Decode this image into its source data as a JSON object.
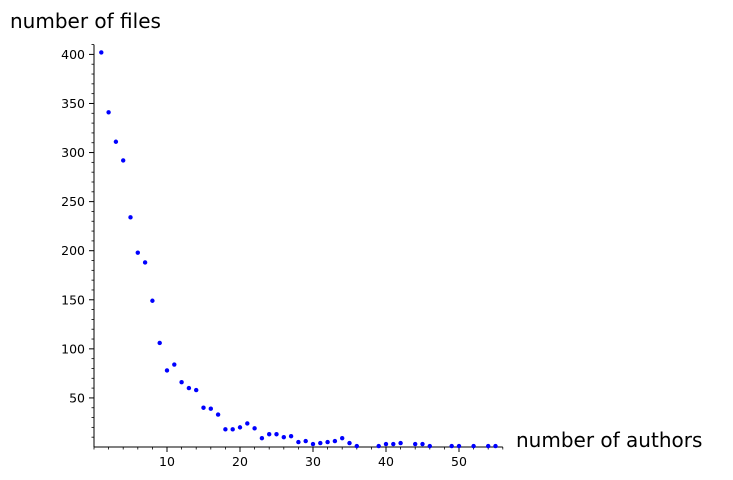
{
  "chart_data": {
    "type": "scatter",
    "title": "",
    "xlabel": "number of authors",
    "ylabel": "number of files",
    "xlim": [
      0,
      56
    ],
    "ylim": [
      0,
      410
    ],
    "grid": false,
    "marker_color": "#0000ff",
    "xticks": [
      10,
      20,
      30,
      40,
      50
    ],
    "yticks": [
      50,
      100,
      150,
      200,
      250,
      300,
      350,
      400
    ],
    "series": [
      {
        "x": [
          1,
          2,
          3,
          4,
          5,
          6,
          7,
          8,
          9,
          10,
          11,
          12,
          13,
          14,
          15,
          16,
          17,
          18,
          19,
          20,
          21,
          22,
          23,
          24,
          25,
          26,
          27,
          28,
          29,
          30,
          31,
          32,
          33,
          34,
          35,
          36,
          39,
          40,
          41,
          42,
          44,
          45,
          46,
          49,
          50,
          52,
          54,
          55
        ],
        "y": [
          402,
          341,
          311,
          292,
          234,
          198,
          188,
          149,
          106,
          78,
          84,
          66,
          60,
          58,
          40,
          39,
          33,
          18,
          18,
          20,
          24,
          19,
          9,
          13,
          13,
          10,
          11,
          5,
          6,
          3,
          4,
          5,
          6,
          9,
          4,
          1,
          1,
          3,
          3,
          4,
          3,
          3,
          1,
          1,
          1,
          1,
          1,
          1
        ]
      }
    ]
  }
}
